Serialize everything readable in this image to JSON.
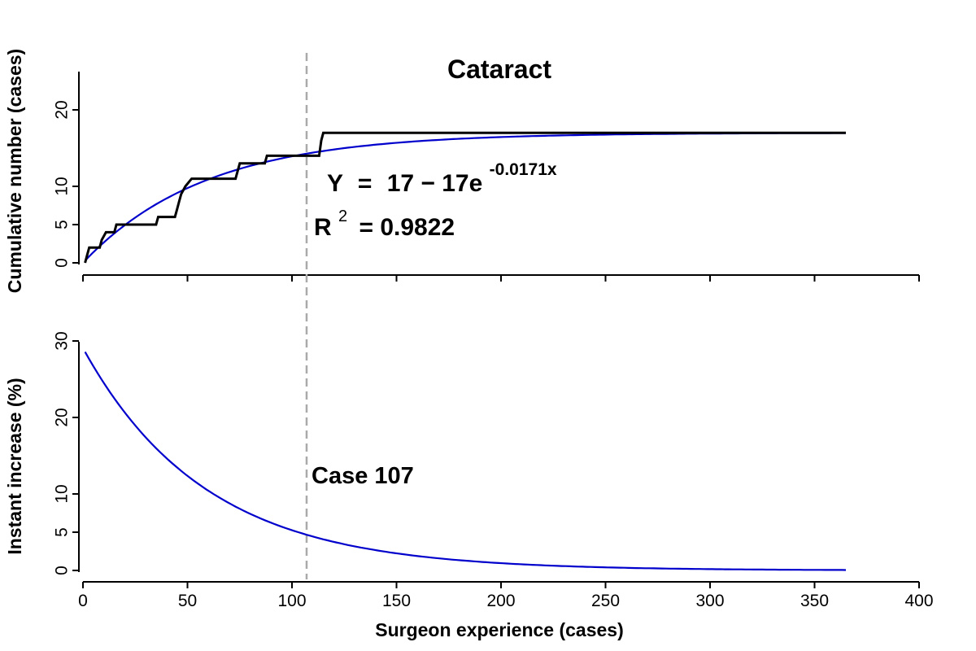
{
  "chart_data": {
    "type": "line",
    "title": "Cataract",
    "xlabel": "Surgeon experience (cases)",
    "xlim": [
      0,
      400
    ],
    "x_ticks": [
      "0",
      "50",
      "100",
      "150",
      "200",
      "250",
      "300",
      "350",
      "400"
    ],
    "reference_line": {
      "x": 107,
      "label": "Case 107",
      "style": "dashed",
      "color": "#aaaaaa"
    },
    "panels": [
      {
        "ylabel": "Cumulative number (cases)",
        "ylim": [
          0,
          25
        ],
        "y_ticks": [
          "0",
          "5",
          "10",
          "20"
        ],
        "y_tick_values": [
          0,
          5,
          10,
          20
        ],
        "equation": {
          "lhs": "Y",
          "rhs": "17 − 17e",
          "exponent": "-0.0171x"
        },
        "r_squared": {
          "label": "R",
          "power": "2",
          "value": "= 0.9822"
        },
        "series": [
          {
            "kind": "step",
            "color": "#000000",
            "points": [
              [
                1,
                0
              ],
              [
                2,
                1
              ],
              [
                3,
                2
              ],
              [
                8,
                2
              ],
              [
                9,
                3
              ],
              [
                11,
                4
              ],
              [
                15,
                4
              ],
              [
                16,
                5
              ],
              [
                35,
                5
              ],
              [
                36,
                6
              ],
              [
                44,
                6
              ],
              [
                45,
                7
              ],
              [
                46,
                8
              ],
              [
                47,
                9
              ],
              [
                49,
                10
              ],
              [
                52,
                11
              ],
              [
                73,
                11
              ],
              [
                74,
                12
              ],
              [
                75,
                13
              ],
              [
                87,
                13
              ],
              [
                88,
                14
              ],
              [
                113,
                14
              ],
              [
                114,
                16
              ],
              [
                115,
                17
              ],
              [
                365,
                17
              ]
            ]
          },
          {
            "kind": "function",
            "color": "#0000cc",
            "a": 17,
            "b": 0.0171,
            "x_range": [
              1,
              365
            ]
          }
        ]
      },
      {
        "ylabel": "Instant increase (%)",
        "ylim": [
          0,
          30
        ],
        "y_ticks": [
          "0",
          "5",
          "10",
          "20",
          "30"
        ],
        "y_tick_values": [
          0,
          5,
          10,
          20,
          30
        ],
        "series": [
          {
            "kind": "function",
            "color": "#0000cc",
            "scale": 29.07,
            "b": 0.0171,
            "x_range": [
              1,
              365
            ]
          }
        ]
      }
    ]
  }
}
